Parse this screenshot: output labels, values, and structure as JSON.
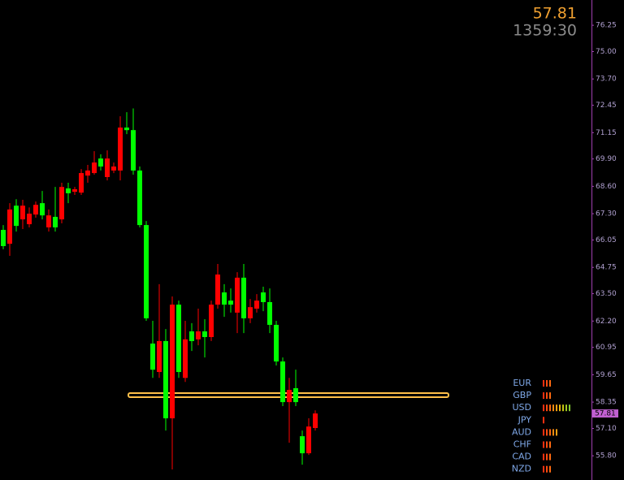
{
  "chart_data": {
    "type": "candlestick",
    "timer": "1359:30",
    "ylim": [
      54.65,
      77.45
    ],
    "yticks": [
      76.25,
      {
        "value": 75,
        "label": "75.00"
      },
      {
        "value": 73.7,
        "label": "73.70"
      },
      72.45,
      71.15,
      {
        "value": 69.9,
        "label": "69.90"
      },
      {
        "value": 68.6,
        "label": "68.60"
      },
      {
        "value": 67.3,
        "label": "67.30"
      },
      66.05,
      64.75,
      {
        "value": 63.5,
        "label": "63.50"
      },
      {
        "value": 62.2,
        "label": "62.20"
      },
      60.95,
      59.65,
      58.35,
      {
        "value": 57.1,
        "label": "57.10"
      },
      {
        "value": 55.8,
        "label": "55.80"
      }
    ],
    "up_color": "#ff0000",
    "down_color": "#00ff00",
    "level": 58.66,
    "level_color": "#ffc04a",
    "open": [
      66.53,
      65.87,
      67.68,
      67.03,
      66.8,
      67.26,
      67.8,
      66.65,
      67.15,
      67.03,
      68.5,
      68.34,
      68.3,
      69.11,
      69.23,
      69.92,
      69.04,
      69.35,
      69.35,
      71.39,
      71.27,
      69.35,
      66.76,
      61.13,
      59.78,
      61.25,
      57.58,
      62.98,
      59.5,
      61.71,
      61.33,
      61.71,
      61.44,
      62.98,
      63.56,
      63.17,
      62.6,
      64.26,
      62.33,
      62.79,
      63.56,
      63.1,
      62.02,
      60.28,
      58.35,
      59.01,
      56.73,
      55.92,
      57.12
    ],
    "high": [
      66.76,
      67.8,
      67.99,
      67.96,
      67.6,
      67.88,
      68.38,
      67.5,
      68.57,
      68.77,
      68.77,
      68.57,
      69.42,
      69.62,
      70.27,
      70.12,
      70.31,
      69.73,
      71.93,
      72.12,
      72.3,
      69.54,
      66.95,
      62.21,
      63.95,
      61.82,
      63.37,
      63.17,
      62.21,
      62.1,
      62.79,
      62.29,
      63.17,
      64.91,
      63.95,
      63.75,
      64.52,
      64.91,
      63.25,
      63.48,
      63.83,
      63.75,
      62.21,
      60.47,
      59.5,
      59.89,
      57.0,
      57.58,
      57.96
    ],
    "low": [
      65.61,
      65.3,
      66.45,
      66.57,
      66.65,
      67.11,
      67.03,
      66.45,
      66.45,
      66.84,
      67.8,
      68.19,
      68.19,
      68.77,
      69.15,
      69.35,
      68.88,
      69.23,
      68.88,
      71.08,
      69.15,
      66.65,
      62.21,
      59.5,
      59.5,
      57.0,
      55.15,
      59.5,
      59.31,
      60.78,
      61.05,
      60.47,
      61.25,
      62.79,
      62.4,
      62.6,
      61.63,
      61.63,
      62.1,
      62.6,
      62.67,
      61.63,
      60.09,
      58.16,
      56.42,
      58.16,
      55.38,
      55.84,
      57.0
    ],
    "close": [
      65.76,
      67.5,
      66.72,
      67.68,
      67.3,
      67.72,
      67.22,
      67.22,
      66.65,
      68.57,
      68.27,
      68.46,
      69.23,
      69.35,
      69.73,
      69.54,
      69.92,
      69.54,
      71.39,
      71.27,
      69.35,
      66.76,
      62.33,
      59.89,
      61.25,
      57.58,
      62.98,
      59.78,
      61.33,
      61.25,
      61.71,
      61.44,
      62.98,
      64.41,
      62.98,
      62.98,
      64.26,
      62.33,
      62.86,
      63.17,
      63.1,
      62.02,
      60.28,
      58.35,
      58.93,
      58.35,
      55.92,
      57.19,
      57.81
    ],
    "strength_panel": {
      "currencies": [
        "EUR",
        "GBP",
        "USD",
        "JPY",
        "AUD",
        "CHF",
        "CAD",
        "NZD"
      ],
      "values": [
        3,
        3,
        9,
        1,
        5,
        3,
        3,
        3
      ]
    }
  }
}
